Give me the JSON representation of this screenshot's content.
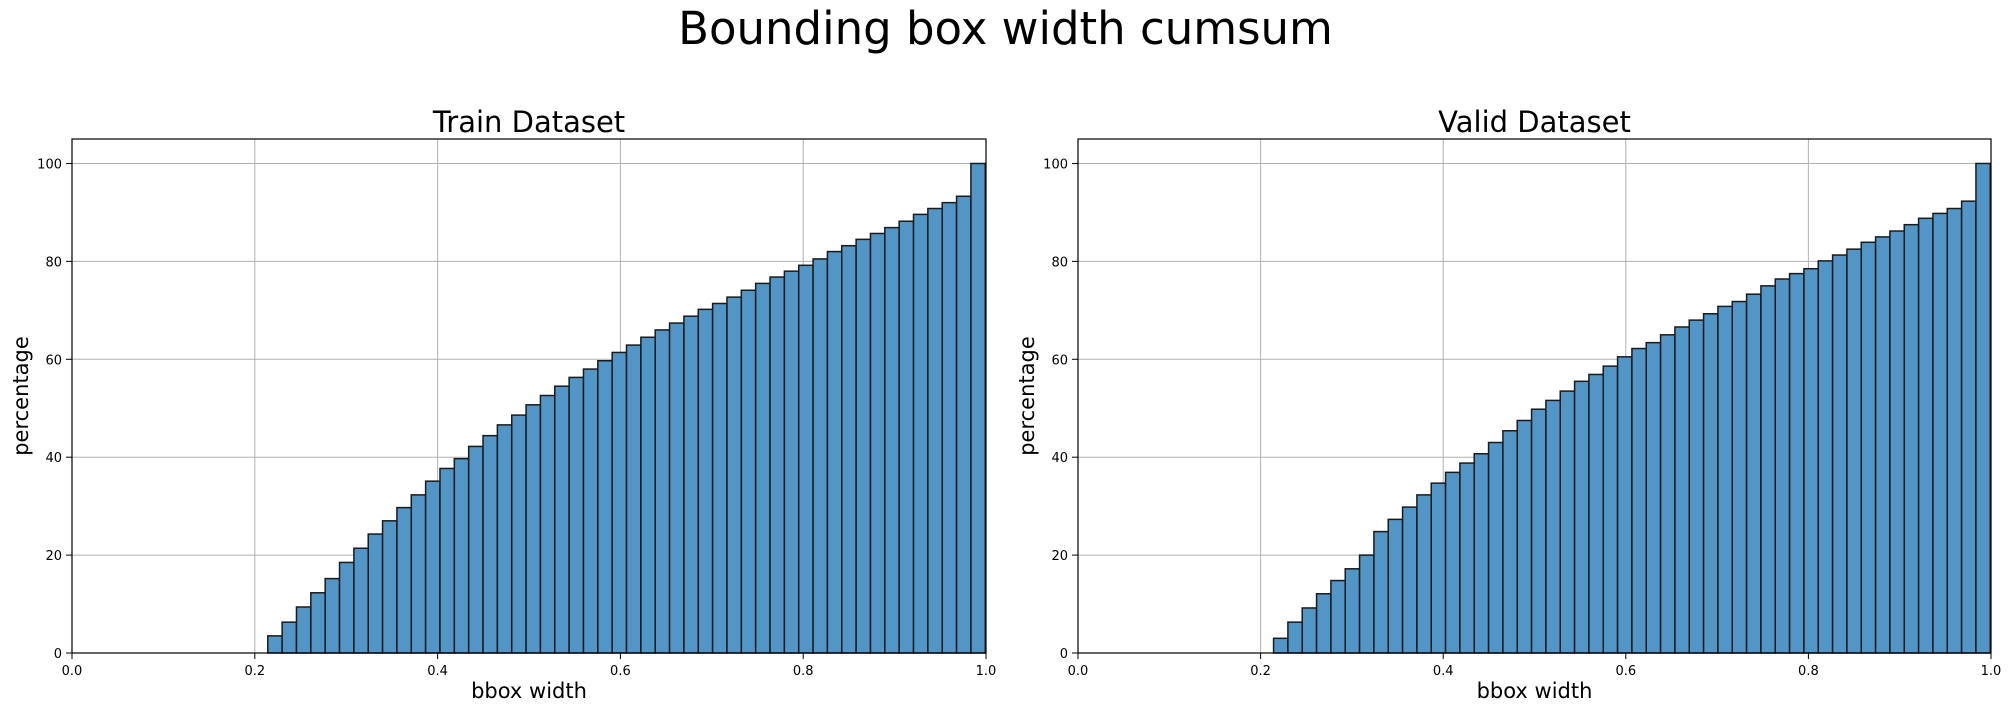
{
  "suptitle": "Bounding box width cumsum",
  "colors": {
    "bar_fill": "#5196c7",
    "bar_edge": "#1a1a1a",
    "grid": "#b0b0b0"
  },
  "chart_data": [
    {
      "type": "bar",
      "title": "Train Dataset",
      "xlabel": "bbox width",
      "ylabel": "percentage",
      "xlim": [
        0,
        1.0
      ],
      "ylim": [
        0,
        105
      ],
      "xticks": [
        0.0,
        0.2,
        0.4,
        0.6,
        0.8,
        1.0
      ],
      "xtick_labels": [
        "0.0",
        "0.2",
        "0.4",
        "0.6",
        "0.8",
        "1.0"
      ],
      "yticks": [
        0,
        20,
        40,
        60,
        80,
        100
      ],
      "ytick_labels": [
        "0",
        "20",
        "40",
        "60",
        "80",
        "100"
      ],
      "grid": true,
      "bin_start": 0.2142,
      "bin_width": 0.0157,
      "values": [
        3.5,
        6.3,
        9.4,
        12.3,
        15.2,
        18.5,
        21.4,
        24.3,
        27.0,
        29.7,
        32.3,
        35.1,
        37.7,
        39.7,
        42.2,
        44.4,
        46.6,
        48.6,
        50.7,
        52.6,
        54.5,
        56.3,
        58.0,
        59.7,
        61.4,
        62.9,
        64.5,
        66.0,
        67.4,
        68.8,
        70.2,
        71.4,
        72.7,
        74.1,
        75.5,
        76.8,
        78.0,
        79.2,
        80.5,
        82.0,
        83.2,
        84.5,
        85.7,
        86.9,
        88.2,
        89.6,
        90.8,
        92.0,
        93.3,
        100.0
      ]
    },
    {
      "type": "bar",
      "title": "Valid Dataset",
      "xlabel": "bbox width",
      "ylabel": "percentage",
      "xlim": [
        0,
        1.0
      ],
      "ylim": [
        0,
        105
      ],
      "xticks": [
        0.0,
        0.2,
        0.4,
        0.6,
        0.8,
        1.0
      ],
      "xtick_labels": [
        "0.0",
        "0.2",
        "0.4",
        "0.6",
        "0.8",
        "1.0"
      ],
      "yticks": [
        0,
        20,
        40,
        60,
        80,
        100
      ],
      "ytick_labels": [
        "0",
        "20",
        "40",
        "60",
        "80",
        "100"
      ],
      "grid": true,
      "bin_start": 0.2142,
      "bin_width": 0.0157,
      "values": [
        3.0,
        6.3,
        9.2,
        12.1,
        14.8,
        17.2,
        20.0,
        24.8,
        27.3,
        29.8,
        32.3,
        34.7,
        36.9,
        38.8,
        40.7,
        43.0,
        45.4,
        47.5,
        49.8,
        51.6,
        53.5,
        55.5,
        56.9,
        58.6,
        60.5,
        62.2,
        63.4,
        65.0,
        66.6,
        68.0,
        69.3,
        70.8,
        71.8,
        73.3,
        75.0,
        76.4,
        77.5,
        78.5,
        80.1,
        81.3,
        82.5,
        83.9,
        85.0,
        86.2,
        87.5,
        88.8,
        89.8,
        90.8,
        92.3,
        100.0
      ]
    }
  ]
}
